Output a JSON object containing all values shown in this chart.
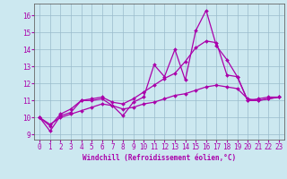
{
  "xlabel": "Windchill (Refroidissement éolien,°C)",
  "bg_color": "#cce8f0",
  "line_color": "#aa00aa",
  "grid_color": "#99bbcc",
  "spine_color": "#666666",
  "xlim": [
    -0.5,
    23.5
  ],
  "ylim": [
    8.7,
    16.7
  ],
  "xticks": [
    0,
    1,
    2,
    3,
    4,
    5,
    6,
    7,
    8,
    9,
    10,
    11,
    12,
    13,
    14,
    15,
    16,
    17,
    18,
    19,
    20,
    21,
    22,
    23
  ],
  "yticks": [
    9,
    10,
    11,
    12,
    13,
    14,
    15,
    16
  ],
  "line1_x": [
    0,
    1,
    2,
    3,
    4,
    5,
    6,
    7,
    8,
    9,
    10,
    11,
    12,
    13,
    14,
    15,
    16,
    17,
    18,
    19,
    20,
    21,
    22,
    23
  ],
  "line1_y": [
    10.0,
    9.2,
    10.1,
    10.3,
    11.0,
    11.0,
    11.1,
    10.7,
    10.1,
    10.9,
    11.2,
    13.1,
    12.4,
    14.0,
    12.2,
    15.1,
    16.3,
    14.2,
    13.4,
    12.4,
    11.0,
    11.0,
    11.1,
    11.2
  ],
  "line2_x": [
    0,
    1,
    2,
    3,
    4,
    5,
    6,
    7,
    8,
    9,
    10,
    11,
    12,
    13,
    14,
    15,
    16,
    17,
    18,
    19,
    20,
    21,
    22,
    23
  ],
  "line2_y": [
    10.0,
    9.5,
    10.2,
    10.5,
    11.0,
    11.1,
    11.2,
    10.9,
    10.8,
    11.1,
    11.5,
    11.9,
    12.3,
    12.6,
    13.3,
    14.1,
    14.5,
    14.4,
    12.5,
    12.4,
    11.0,
    11.1,
    11.2,
    11.2
  ],
  "line3_x": [
    0,
    1,
    2,
    3,
    4,
    5,
    6,
    7,
    8,
    9,
    10,
    11,
    12,
    13,
    14,
    15,
    16,
    17,
    18,
    19,
    20,
    21,
    22,
    23
  ],
  "line3_y": [
    10.0,
    9.6,
    10.0,
    10.2,
    10.4,
    10.6,
    10.8,
    10.7,
    10.5,
    10.6,
    10.8,
    10.9,
    11.1,
    11.3,
    11.4,
    11.6,
    11.8,
    11.9,
    11.8,
    11.7,
    11.1,
    11.0,
    11.1,
    11.2
  ],
  "xlabel_fontsize": 5.5,
  "tick_fontsize": 5.5,
  "marker_size": 2.0
}
